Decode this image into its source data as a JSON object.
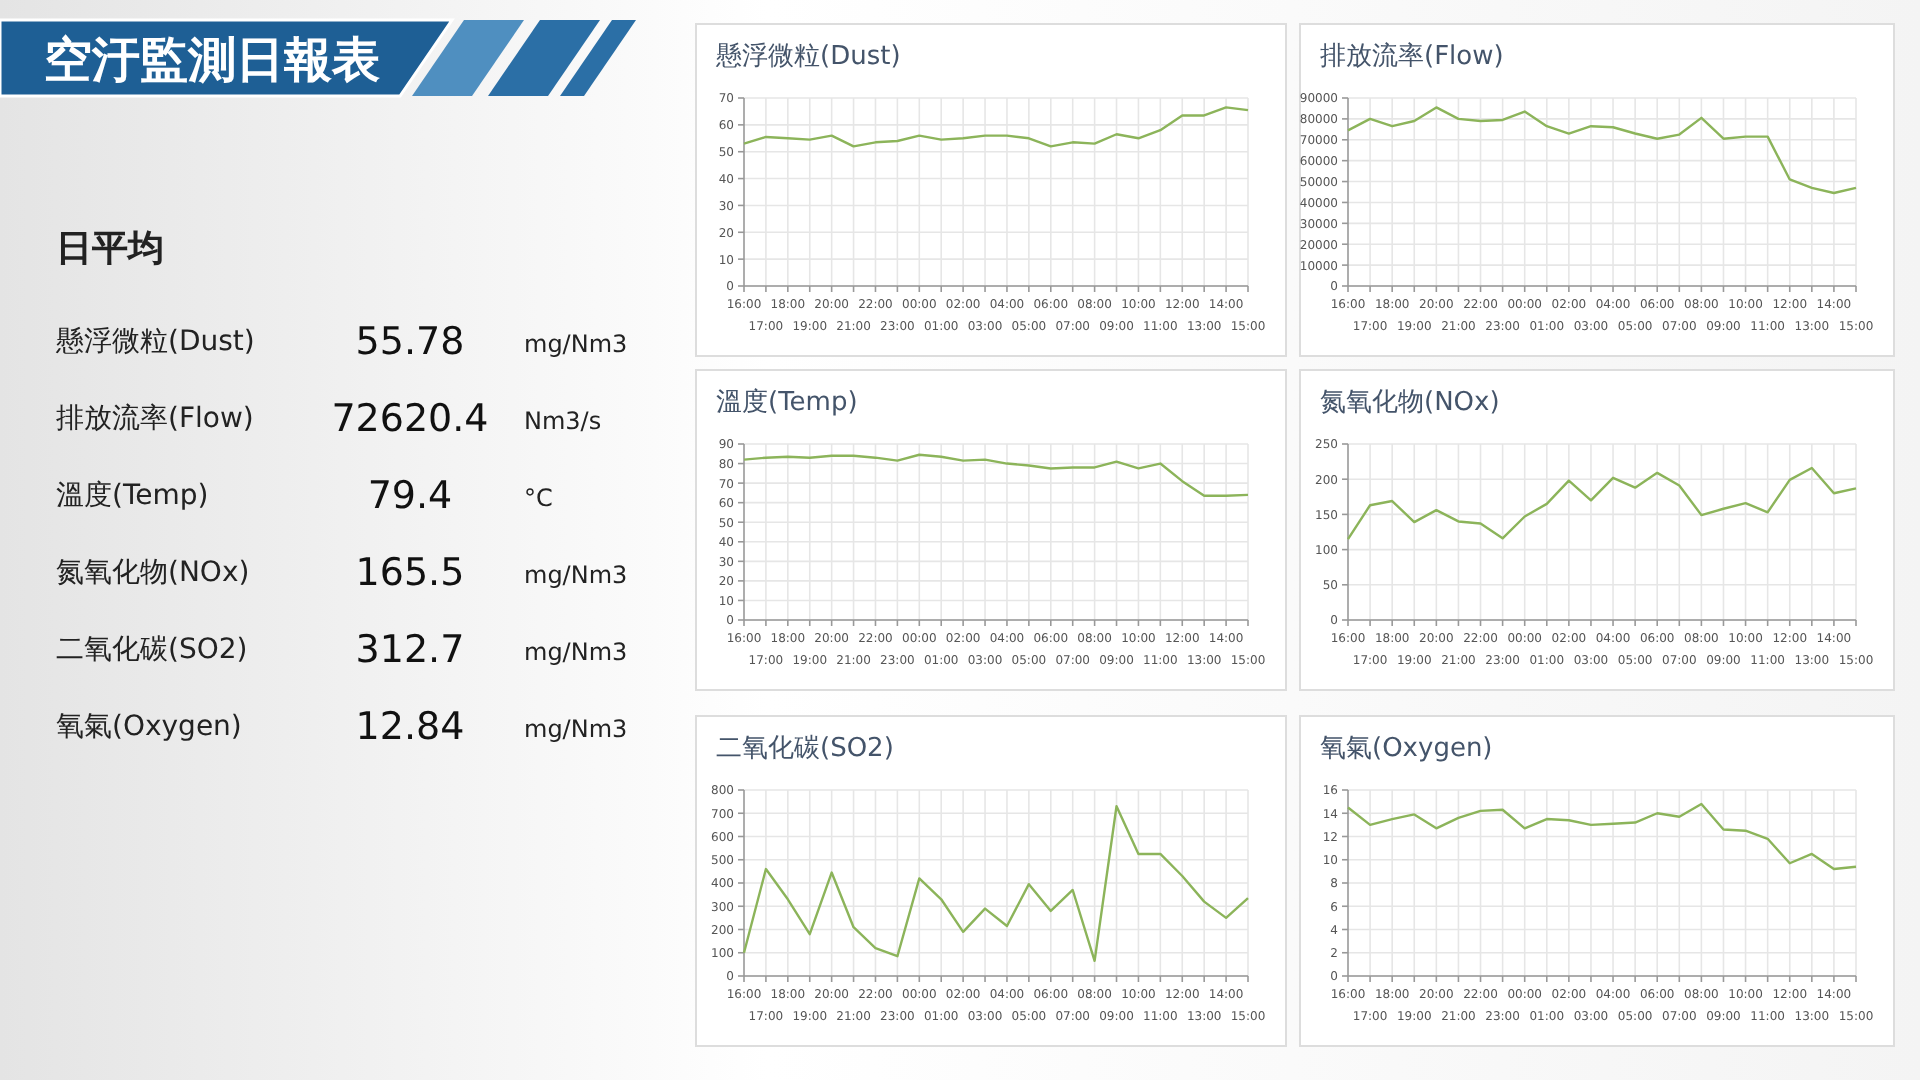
{
  "chart_data": [
    {
      "type": "other",
      "title": "空汙監測日報表",
      "subtitle": "日平均",
      "categories": [
        "懸浮微粒(Dust)",
        "排放流率(Flow)",
        "溫度(Temp)",
        "氮氧化物(NOx)",
        "二氧化碳(SO2)",
        "氧氣(Oxygen)"
      ],
      "values": [
        55.78,
        72620.4,
        79.4,
        165.5,
        312.7,
        12.84
      ],
      "data_labels": true,
      "annotations": [
        "mg/Nm3",
        "Nm3/s",
        "°C",
        "mg/Nm3",
        "mg/Nm3",
        "mg/Nm3"
      ]
    },
    {
      "type": "line",
      "title": "懸浮微粒(Dust)",
      "categories": [
        "16:00",
        "17:00",
        "18:00",
        "19:00",
        "20:00",
        "21:00",
        "22:00",
        "23:00",
        "00:00",
        "01:00",
        "02:00",
        "03:00",
        "04:00",
        "05:00",
        "06:00",
        "07:00",
        "08:00",
        "09:00",
        "10:00",
        "11:00",
        "12:00",
        "13:00",
        "14:00",
        "15:00"
      ],
      "color": "#8cb45a",
      "values": [
        53,
        55.5,
        55,
        54.5,
        56,
        52,
        53.5,
        54,
        56,
        54.5,
        55,
        56,
        56,
        55,
        52,
        53.5,
        53,
        56.5,
        55,
        58,
        63.5,
        63.5,
        66.5,
        65.5
      ],
      "ylim": [
        0,
        70
      ],
      "yticks": [
        0,
        10,
        20,
        30,
        40,
        50,
        60,
        70
      ],
      "grid": true
    },
    {
      "type": "line",
      "title": "排放流率(Flow)",
      "categories": [
        "16:00",
        "17:00",
        "18:00",
        "19:00",
        "20:00",
        "21:00",
        "22:00",
        "23:00",
        "00:00",
        "01:00",
        "02:00",
        "03:00",
        "04:00",
        "05:00",
        "06:00",
        "07:00",
        "08:00",
        "09:00",
        "10:00",
        "11:00",
        "12:00",
        "13:00",
        "14:00",
        "15:00"
      ],
      "color": "#8cb45a",
      "values": [
        74500,
        80000,
        76500,
        79000,
        85500,
        80000,
        79000,
        79500,
        83500,
        76500,
        73000,
        76500,
        76000,
        73000,
        70500,
        72500,
        80500,
        70500,
        71500,
        71500,
        51000,
        47000,
        44500,
        47000
      ],
      "ylim": [
        0,
        90000
      ],
      "yticks": [
        0,
        10000,
        20000,
        30000,
        40000,
        50000,
        60000,
        70000,
        80000,
        90000
      ],
      "grid": true
    },
    {
      "type": "line",
      "title": "溫度(Temp)",
      "categories": [
        "16:00",
        "17:00",
        "18:00",
        "19:00",
        "20:00",
        "21:00",
        "22:00",
        "23:00",
        "00:00",
        "01:00",
        "02:00",
        "03:00",
        "04:00",
        "05:00",
        "06:00",
        "07:00",
        "08:00",
        "09:00",
        "10:00",
        "11:00",
        "12:00",
        "13:00",
        "14:00",
        "15:00"
      ],
      "color": "#8cb45a",
      "values": [
        82,
        83,
        83.5,
        83,
        84,
        84,
        83,
        81.5,
        84.5,
        83.5,
        81.5,
        82,
        80,
        79,
        77.5,
        78,
        78,
        81,
        77.5,
        80,
        71,
        63.5,
        63.5,
        64
      ],
      "ylim": [
        0,
        90
      ],
      "yticks": [
        0,
        10,
        20,
        30,
        40,
        50,
        60,
        70,
        80,
        90
      ],
      "grid": true
    },
    {
      "type": "line",
      "title": "氮氧化物(NOx)",
      "categories": [
        "16:00",
        "17:00",
        "18:00",
        "19:00",
        "20:00",
        "21:00",
        "22:00",
        "23:00",
        "00:00",
        "01:00",
        "02:00",
        "03:00",
        "04:00",
        "05:00",
        "06:00",
        "07:00",
        "08:00",
        "09:00",
        "10:00",
        "11:00",
        "12:00",
        "13:00",
        "14:00",
        "15:00"
      ],
      "color": "#8cb45a",
      "values": [
        115,
        163,
        169,
        139,
        156,
        140,
        137,
        116,
        147,
        165,
        198,
        170,
        202,
        188,
        209,
        191,
        149,
        158,
        166,
        153,
        199,
        216,
        180,
        187
      ],
      "ylim": [
        0,
        250
      ],
      "yticks": [
        0,
        50,
        100,
        150,
        200,
        250
      ],
      "grid": true
    },
    {
      "type": "line",
      "title": "二氧化碳(SO2)",
      "categories": [
        "16:00",
        "17:00",
        "18:00",
        "19:00",
        "20:00",
        "21:00",
        "22:00",
        "23:00",
        "00:00",
        "01:00",
        "02:00",
        "03:00",
        "04:00",
        "05:00",
        "06:00",
        "07:00",
        "08:00",
        "09:00",
        "10:00",
        "11:00",
        "12:00",
        "13:00",
        "14:00",
        "15:00"
      ],
      "color": "#8cb45a",
      "values": [
        100,
        460,
        330,
        180,
        445,
        210,
        120,
        85,
        420,
        330,
        190,
        290,
        215,
        395,
        280,
        370,
        65,
        730,
        525,
        525,
        430,
        320,
        250,
        335
      ],
      "ylim": [
        0,
        800
      ],
      "yticks": [
        0,
        100,
        200,
        300,
        400,
        500,
        600,
        700,
        800
      ],
      "grid": true
    },
    {
      "type": "line",
      "title": "氧氣(Oxygen)",
      "categories": [
        "16:00",
        "17:00",
        "18:00",
        "19:00",
        "20:00",
        "21:00",
        "22:00",
        "23:00",
        "00:00",
        "01:00",
        "02:00",
        "03:00",
        "04:00",
        "05:00",
        "06:00",
        "07:00",
        "08:00",
        "09:00",
        "10:00",
        "11:00",
        "12:00",
        "13:00",
        "14:00",
        "15:00"
      ],
      "color": "#8cb45a",
      "values": [
        14.5,
        13,
        13.5,
        13.9,
        12.7,
        13.6,
        14.2,
        14.3,
        12.7,
        13.5,
        13.4,
        13,
        13.1,
        13.2,
        14,
        13.7,
        14.8,
        12.6,
        12.5,
        11.8,
        9.7,
        10.5,
        9.2,
        9.4
      ],
      "ylim": [
        0,
        16
      ],
      "yticks": [
        0,
        2,
        4,
        6,
        8,
        10,
        12,
        14,
        16
      ],
      "grid": true
    }
  ]
}
